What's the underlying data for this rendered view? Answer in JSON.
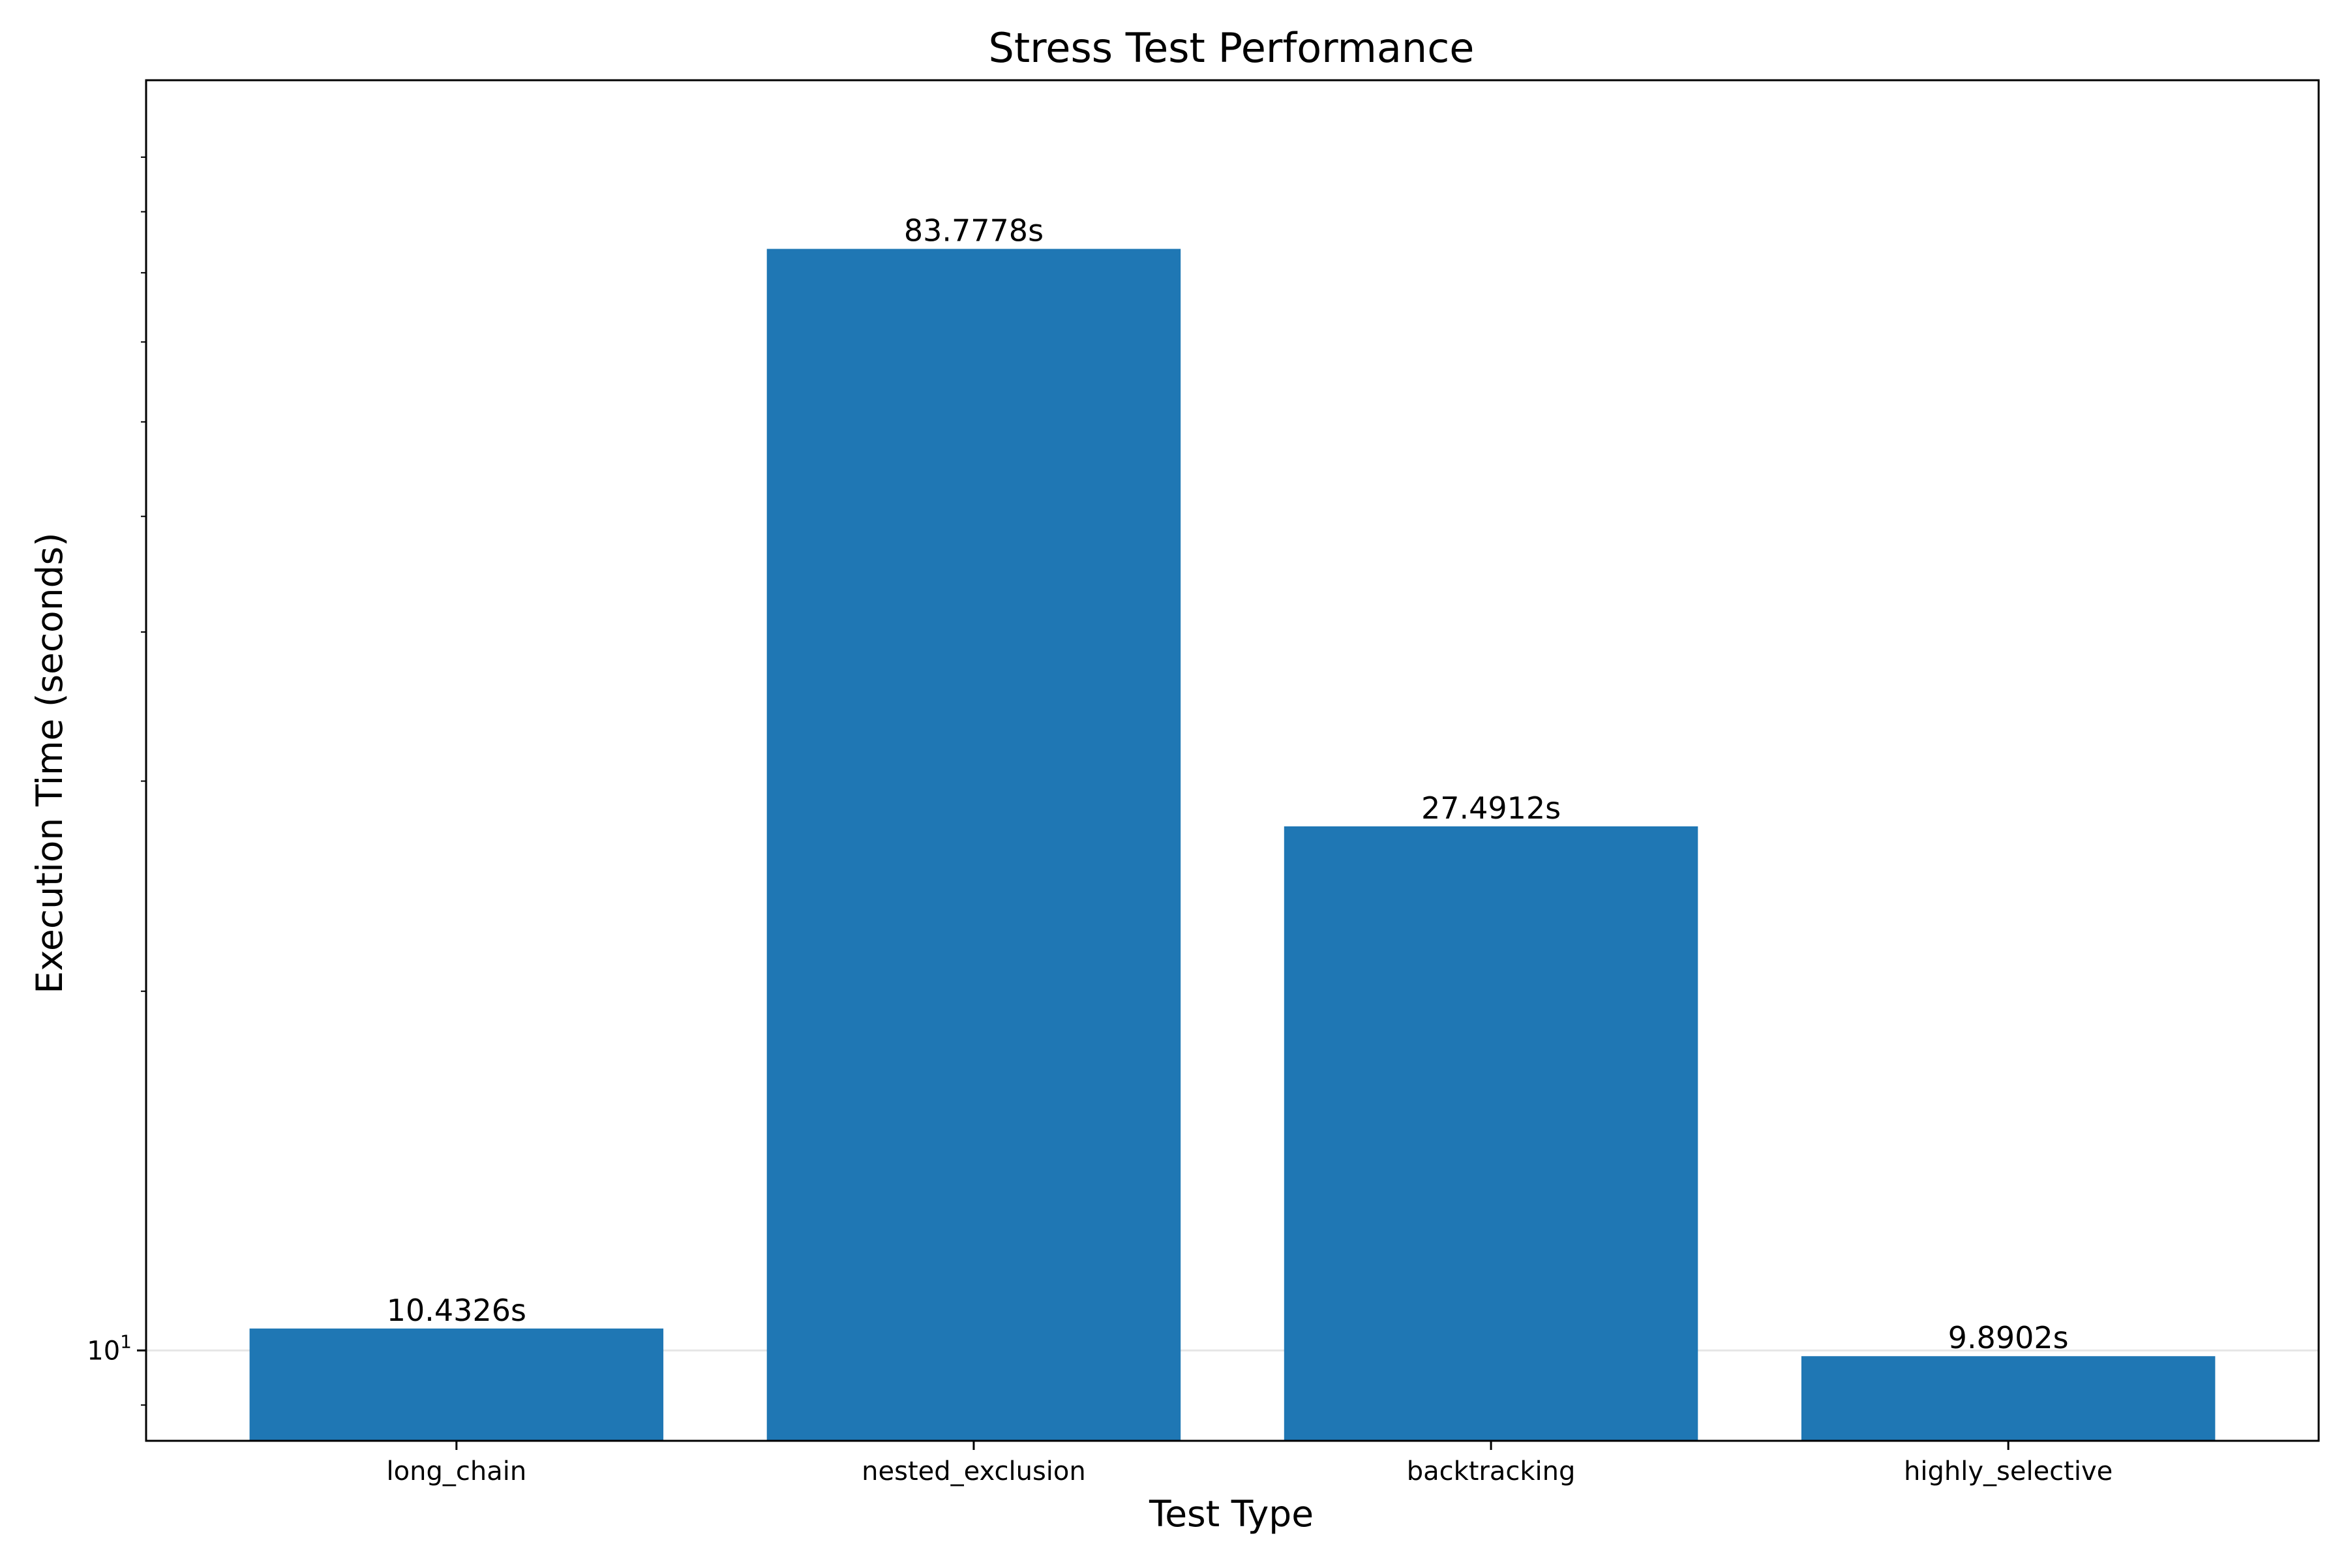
{
  "chart_data": {
    "type": "bar",
    "title": "Stress Test Performance",
    "xlabel": "Test Type",
    "ylabel": "Execution Time (seconds)",
    "yscale": "log",
    "ylim": [
      8.4,
      116
    ],
    "grid": "y-major-only",
    "categories": [
      "long_chain",
      "nested_exclusion",
      "backtracking",
      "highly_selective"
    ],
    "values": [
      10.4326,
      83.7778,
      27.4912,
      9.8902
    ],
    "data_labels": [
      "10.4326s",
      "83.7778s",
      "27.4912s",
      "9.8902s"
    ],
    "y_ticks": [
      {
        "value": 10,
        "base": "10",
        "exp": "1"
      }
    ],
    "bar_color": "#1f77b4",
    "grid_color": "#e6e6e6"
  }
}
